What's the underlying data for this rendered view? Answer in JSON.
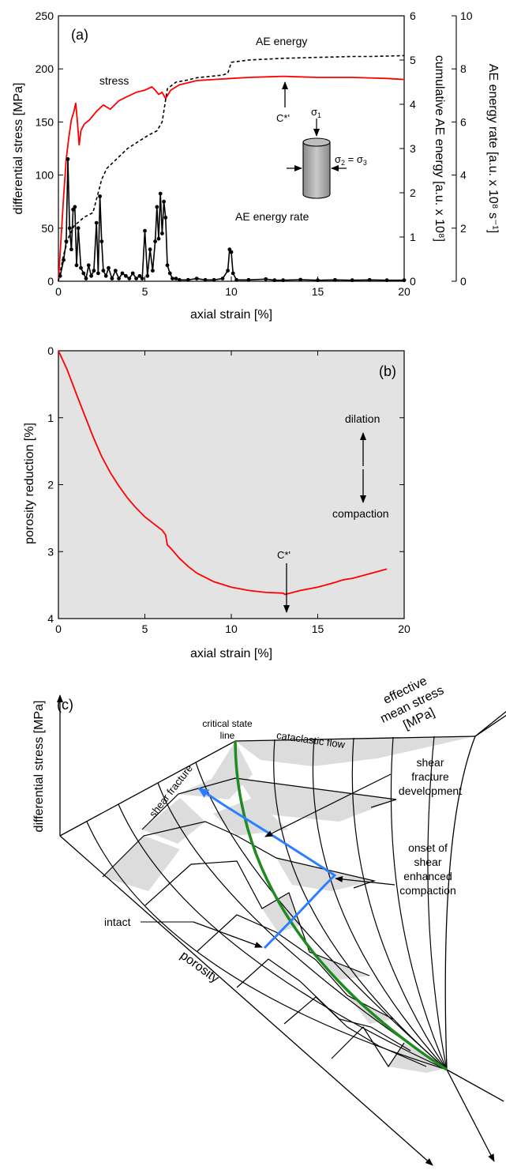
{
  "colors": {
    "stress": "#ff0000",
    "ae_energy": "#000000",
    "ae_rate": "#000000",
    "porosity": "#ff0000",
    "panel_b_fill": "#e3e3e3",
    "critical_state_line": "#1f8a1f",
    "path": "#2b7fff",
    "surface_fill": "#dcdcdc"
  },
  "panel_a": {
    "label": "(a)",
    "inset_sigma1": "σ",
    "inset_sigma1_sub": "1",
    "inset_sigma23": "σ",
    "inset_sigma23_sub1": "2",
    "inset_sigma23_eq": " = σ",
    "inset_sigma23_sub2": "3"
  },
  "panel_b": {
    "label": "(b)",
    "dilation": "dilation",
    "compaction": "compaction"
  },
  "panel_c": {
    "label": "(c)",
    "y_axis": "differential stress [MPa]",
    "z_axis_line1": "effective",
    "z_axis_line2": "mean stress",
    "z_axis_line3": "[MPa]",
    "x_axis": "porosity",
    "csl_line1": "critical state",
    "csl_line2": "line",
    "cataclastic_flow": "cataclastic flow",
    "shear_fracture": "shear fracture",
    "sfd_line1": "shear",
    "sfd_line2": "fracture",
    "sfd_line3": "development",
    "onset_line1": "onset of",
    "onset_line2": "shear",
    "onset_line3": "enhanced",
    "onset_line4": "compaction",
    "intact": "intact"
  },
  "chart_data": [
    {
      "type": "line",
      "xlabel": "axial strain [%]",
      "xlim": [
        0,
        20
      ],
      "x_ticks": [
        0,
        5,
        10,
        15,
        20
      ],
      "ylabel_left": "differential stress [MPa]",
      "ylim_left": [
        0,
        250
      ],
      "y_ticks_left": [
        0,
        50,
        100,
        150,
        200,
        250
      ],
      "ylabel_mid": "cumulative AE energy [a.u. x 10⁸]",
      "ylim_mid": [
        0,
        6
      ],
      "y_ticks_mid": [
        0,
        1,
        2,
        3,
        4,
        5,
        6
      ],
      "ylabel_right": "AE energy rate [a.u. x 10⁸ s⁻¹]",
      "ylim_right": [
        0,
        10
      ],
      "y_ticks_right": [
        0,
        2,
        4,
        6,
        8,
        10
      ],
      "annotations": {
        "c_star": "C*'",
        "c_star_x": 13.1
      },
      "series": [
        {
          "name": "stress",
          "axis": "left",
          "x": [
            0,
            0.15,
            0.3,
            0.45,
            0.6,
            0.75,
            0.9,
            1.0,
            1.1,
            1.2,
            1.3,
            1.5,
            1.8,
            2.2,
            2.6,
            3.0,
            3.5,
            4.0,
            4.5,
            5.0,
            5.4,
            5.6,
            5.8,
            6.0,
            6.2,
            6.5,
            7.0,
            7.5,
            8.0,
            9.0,
            10.0,
            11.0,
            12.0,
            13.0,
            14.0,
            15.0,
            16.0,
            17.0,
            18.0,
            19.0,
            20.0
          ],
          "y": [
            0,
            40,
            80,
            115,
            135,
            152,
            160,
            168,
            150,
            128,
            142,
            148,
            152,
            160,
            166,
            162,
            170,
            174,
            178,
            180,
            183,
            180,
            176,
            178,
            172,
            180,
            185,
            187,
            189,
            190,
            191,
            192,
            192.5,
            193,
            192.5,
            192,
            192,
            192,
            191.5,
            191,
            190
          ]
        },
        {
          "name": "AE energy",
          "axis": "mid",
          "x": [
            0,
            0.3,
            0.6,
            0.9,
            1.2,
            1.5,
            2.0,
            2.5,
            2.8,
            3.2,
            3.6,
            4.0,
            4.6,
            5.2,
            5.7,
            6.0,
            6.3,
            6.8,
            7.5,
            8.0,
            8.5,
            9.0,
            9.5,
            9.8,
            10.0,
            11.0,
            12.0,
            13.0,
            14.0,
            15.0,
            16.0,
            17.0,
            18.0,
            19.0,
            20.0
          ],
          "y": [
            0,
            0.6,
            1.0,
            1.25,
            1.35,
            1.45,
            1.55,
            2.3,
            2.55,
            2.7,
            2.85,
            3.0,
            3.15,
            3.3,
            3.4,
            3.6,
            4.35,
            4.5,
            4.55,
            4.6,
            4.62,
            4.64,
            4.66,
            4.7,
            4.95,
            5.0,
            5.02,
            5.04,
            5.05,
            5.06,
            5.07,
            5.08,
            5.08,
            5.09,
            5.1
          ]
        },
        {
          "name": "AE energy rate",
          "axis": "right",
          "x": [
            0.1,
            0.3,
            0.45,
            0.55,
            0.65,
            0.75,
            0.85,
            0.95,
            1.05,
            1.15,
            1.3,
            1.45,
            1.6,
            1.75,
            1.9,
            2.05,
            2.2,
            2.3,
            2.4,
            2.5,
            2.6,
            2.75,
            2.9,
            3.1,
            3.3,
            3.5,
            3.7,
            3.9,
            4.1,
            4.3,
            4.5,
            4.7,
            4.85,
            5.0,
            5.15,
            5.3,
            5.45,
            5.6,
            5.7,
            5.8,
            5.9,
            6.0,
            6.1,
            6.2,
            6.3,
            6.45,
            6.6,
            6.8,
            7.0,
            7.5,
            8.0,
            8.5,
            9.0,
            9.5,
            9.8,
            9.9,
            10.0,
            10.1,
            10.3,
            11.0,
            12.0,
            12.5,
            13.0,
            14.0,
            15.0,
            16.0,
            17.0,
            18.0,
            19.0,
            20.0
          ],
          "y": [
            0.2,
            0.8,
            1.5,
            4.6,
            2.0,
            1.2,
            2.7,
            2.8,
            0.6,
            2.0,
            0.5,
            0.3,
            0.1,
            0.6,
            0.2,
            0.4,
            2.2,
            0.3,
            3.2,
            1.5,
            0.4,
            0.2,
            0.5,
            0.1,
            0.4,
            0.1,
            0.3,
            0.2,
            0.1,
            0.3,
            0.1,
            0.2,
            0.1,
            1.9,
            0.2,
            1.2,
            0.4,
            1.5,
            2.8,
            1.6,
            3.3,
            1.8,
            3.0,
            2.4,
            0.6,
            0.3,
            0.1,
            0.1,
            0.05,
            0.05,
            0.1,
            0.05,
            0.05,
            0.1,
            0.4,
            1.2,
            1.1,
            0.3,
            0.05,
            0.05,
            0.08,
            0.04,
            0.04,
            0.06,
            0.04,
            0.05,
            0.04,
            0.05,
            0.04,
            0.04
          ]
        }
      ]
    },
    {
      "type": "line",
      "xlabel": "axial strain [%]",
      "xlim": [
        0,
        20
      ],
      "x_ticks": [
        0,
        5,
        10,
        15,
        20
      ],
      "ylabel": "porosity reduction [%]",
      "ylim": [
        0,
        4
      ],
      "y_ticks": [
        0,
        1,
        2,
        3,
        4
      ],
      "y_inverted": true,
      "annotations": {
        "c_star": "C*'",
        "c_star_x": 13.1
      },
      "series": [
        {
          "name": "porosity reduction",
          "x": [
            0,
            0.5,
            1,
            1.5,
            2,
            2.5,
            3,
            3.5,
            4,
            4.5,
            5,
            5.5,
            6,
            6.2,
            6.3,
            6.5,
            7,
            7.5,
            8,
            9,
            10,
            11,
            12,
            13,
            13.1,
            14,
            15,
            16,
            16.5,
            17,
            18,
            19
          ],
          "y": [
            0,
            0.28,
            0.62,
            0.95,
            1.28,
            1.58,
            1.82,
            2.02,
            2.2,
            2.35,
            2.48,
            2.58,
            2.68,
            2.75,
            2.9,
            2.95,
            3.1,
            3.22,
            3.32,
            3.45,
            3.53,
            3.58,
            3.61,
            3.62,
            3.64,
            3.58,
            3.53,
            3.46,
            3.42,
            3.4,
            3.33,
            3.26
          ]
        }
      ]
    }
  ]
}
